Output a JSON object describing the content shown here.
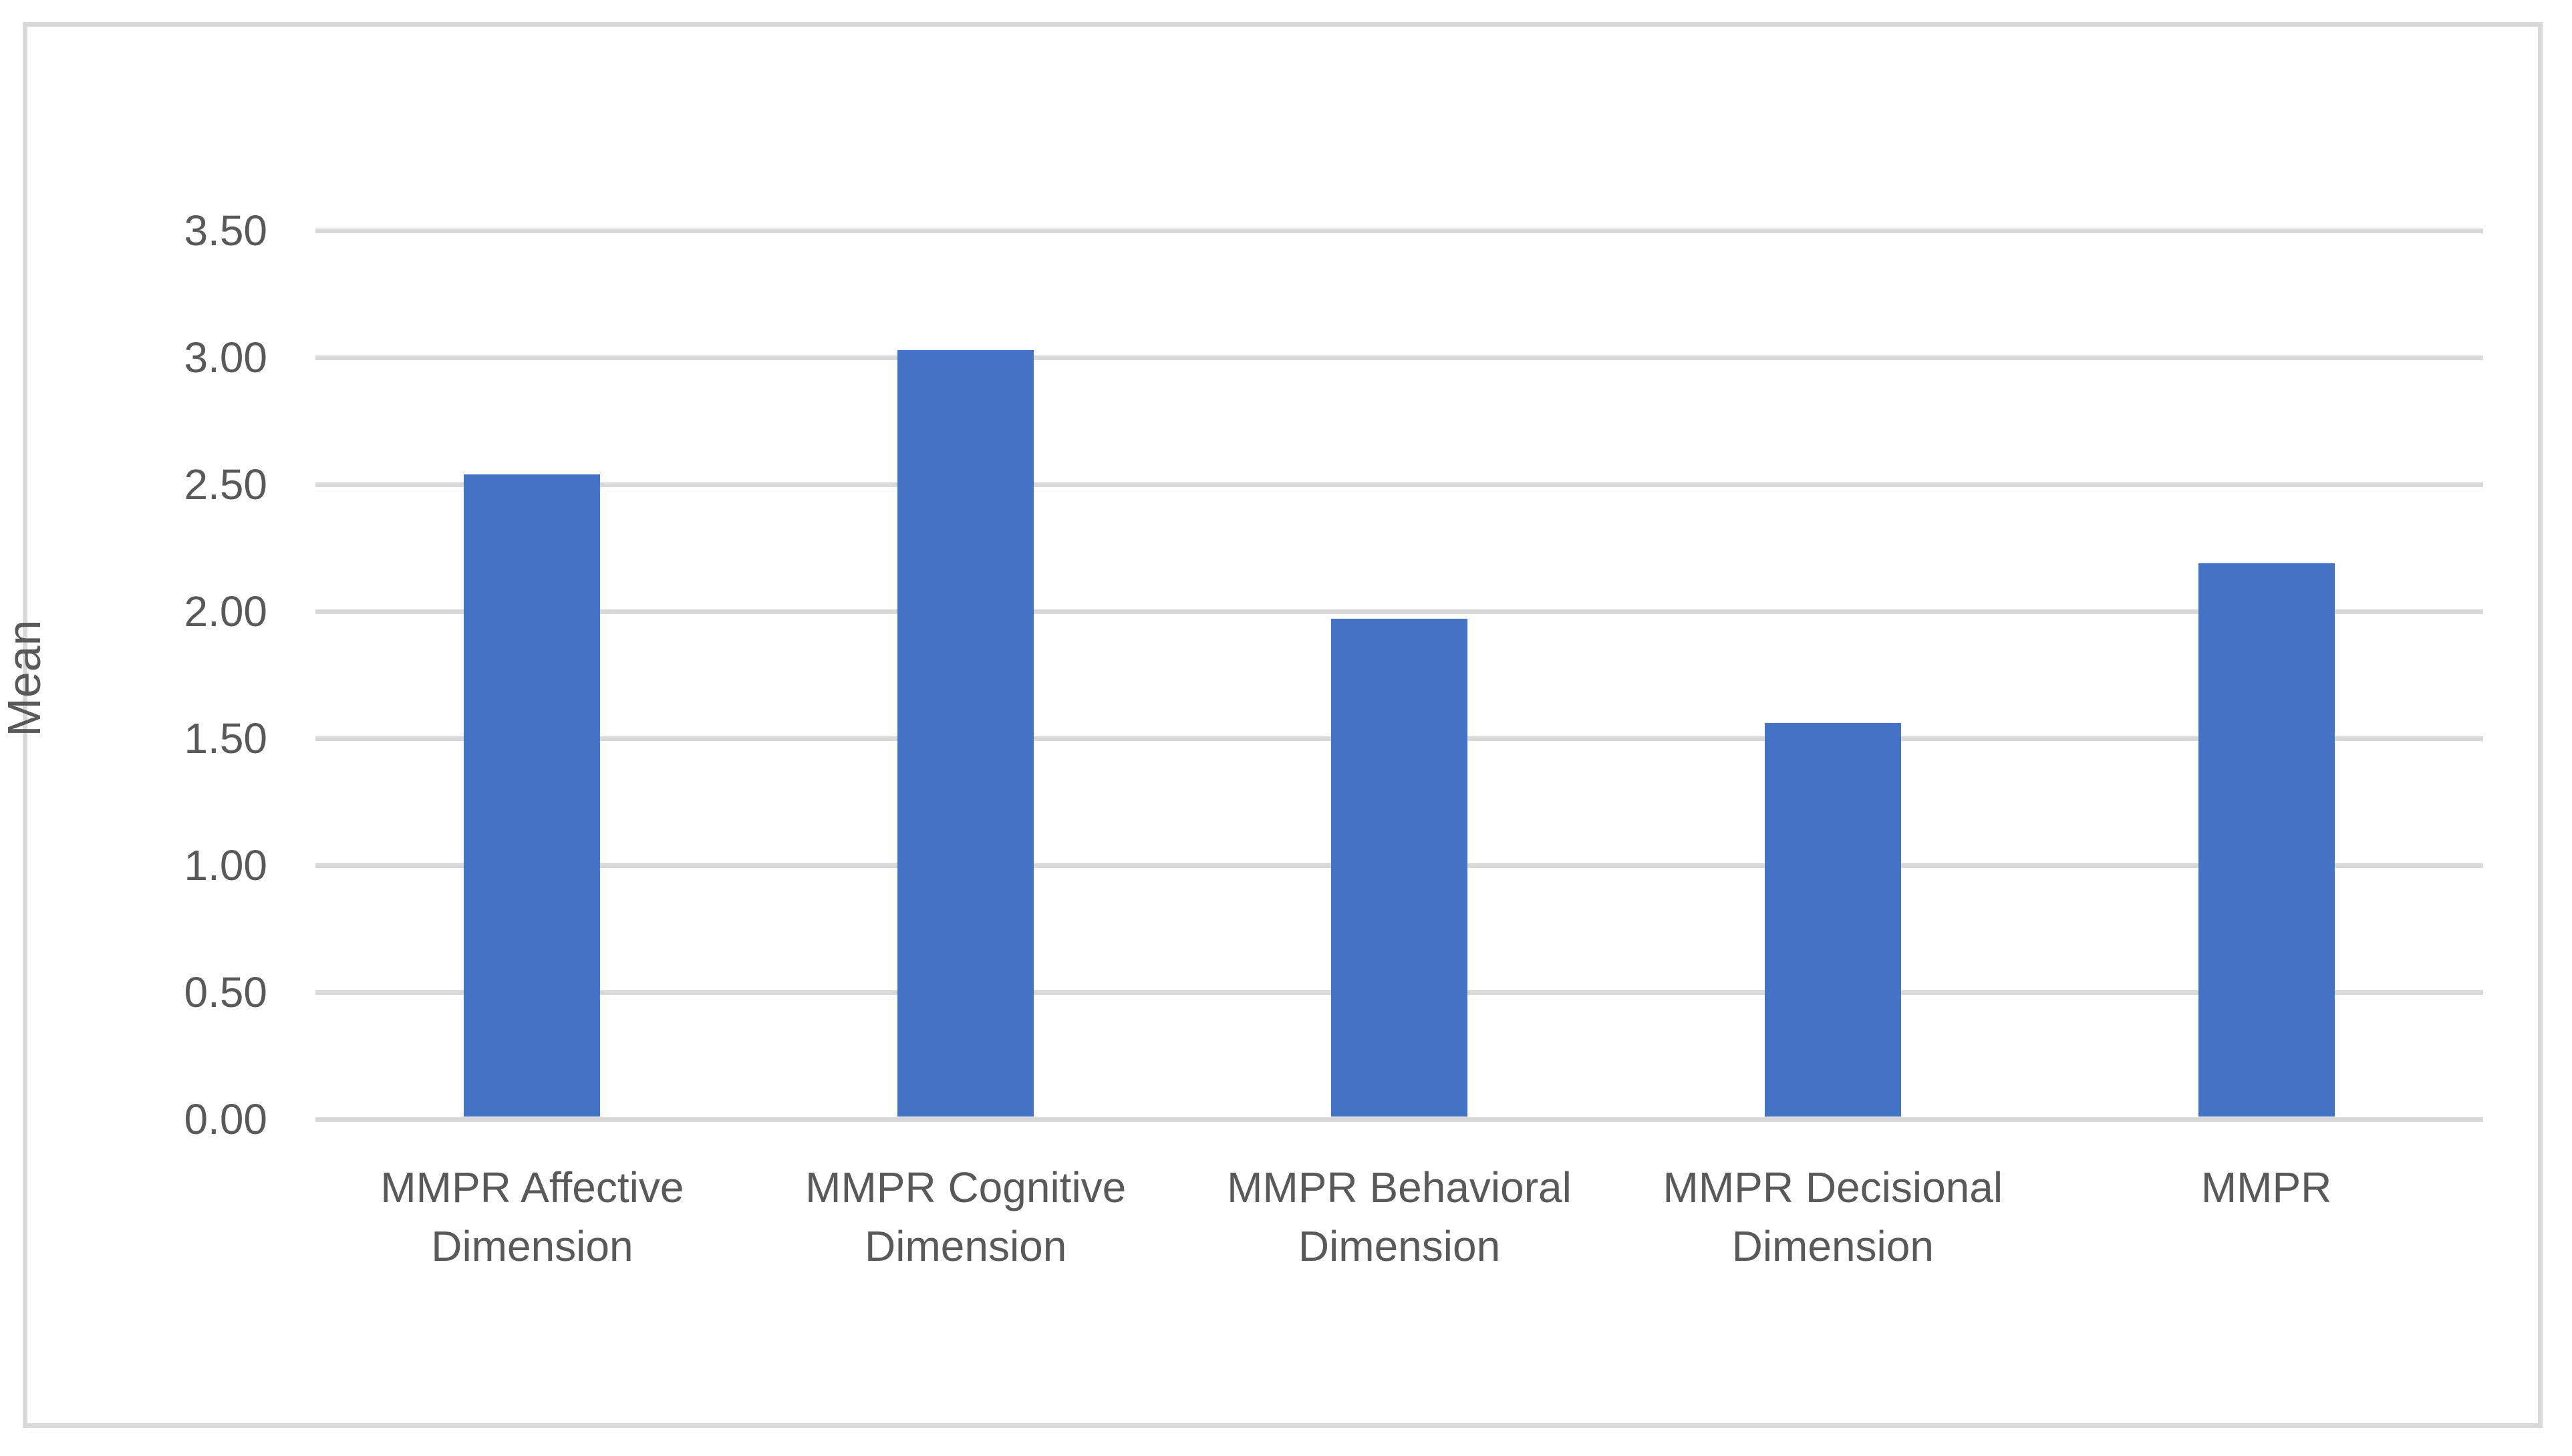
{
  "figure": {
    "kind": "statistical bar chart figure",
    "background": "#FFFFFF",
    "border_color": "#D9D9D9"
  },
  "chart_data": {
    "type": "bar",
    "title": "",
    "xlabel": "",
    "ylabel": "Mean",
    "categories": [
      "MMPR Affective Dimension",
      "MMPR Cognitive Dimension",
      "MMPR Behavioral Dimension",
      "MMPR Decisional Dimension",
      "MMPR"
    ],
    "values": [
      2.54,
      3.03,
      1.97,
      1.56,
      2.19
    ],
    "ylim": [
      0,
      3.5
    ],
    "ytick_step": 0.5,
    "yticks": [
      "0.00",
      "0.50",
      "1.00",
      "1.50",
      "2.00",
      "2.50",
      "3.00",
      "3.50"
    ],
    "grid": true,
    "legend": false,
    "legend_position": "none",
    "bar_color": "#4472C4",
    "gridline_color": "#D9D9D9",
    "text_color": "#595959"
  }
}
